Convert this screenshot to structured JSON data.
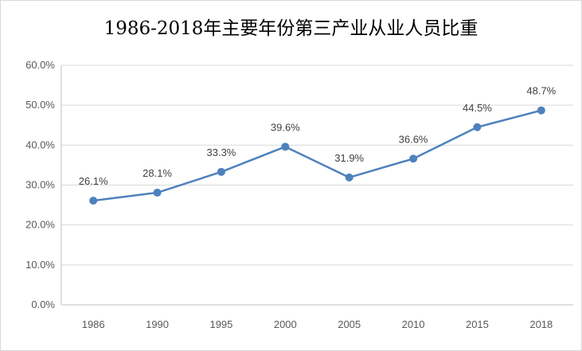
{
  "chart_data": {
    "type": "line",
    "title": "1986-2018年主要年份第三产业从业人员比重",
    "categories": [
      "1986",
      "1990",
      "1995",
      "2000",
      "2005",
      "2010",
      "2015",
      "2018"
    ],
    "series": [
      {
        "values": [
          26.1,
          28.1,
          33.3,
          39.6,
          31.9,
          36.6,
          44.5,
          48.7
        ],
        "value_labels": [
          "26.1%",
          "28.1%",
          "33.3%",
          "39.6%",
          "31.9%",
          "36.6%",
          "44.5%",
          "48.7%"
        ]
      }
    ],
    "ylim": [
      0,
      60
    ],
    "y_ticks": [
      0,
      10,
      20,
      30,
      40,
      50,
      60
    ],
    "y_tick_labels": [
      "0.0%",
      "10.0%",
      "20.0%",
      "30.0%",
      "40.0%",
      "50.0%",
      "60.0%"
    ],
    "grid": true,
    "legend": "none",
    "line_color": "#4f81bd",
    "grid_color": "#d9d9d9",
    "xlabel": "",
    "ylabel": ""
  }
}
